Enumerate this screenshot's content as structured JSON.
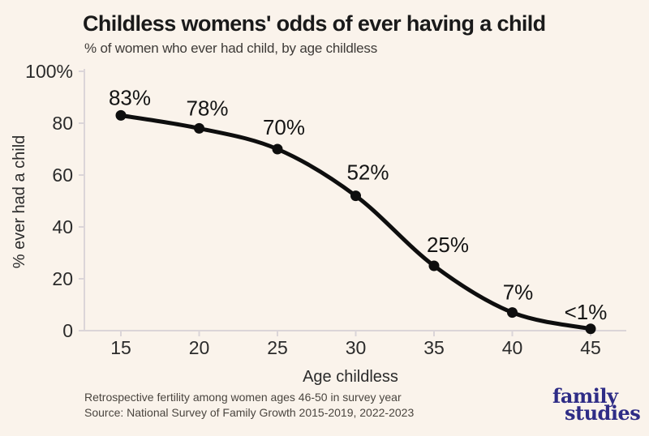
{
  "header": {
    "title": "Childless womens' odds of ever having a child",
    "subtitle": "% of women who ever had child, by age childless"
  },
  "chart_data": {
    "type": "line",
    "x": [
      15,
      20,
      25,
      30,
      35,
      40,
      45
    ],
    "values": [
      83,
      78,
      70,
      52,
      25,
      7,
      0.7
    ],
    "point_labels": [
      "83%",
      "78%",
      "70%",
      "52%",
      "25%",
      "7%",
      "<1%"
    ],
    "xlabel": "Age childless",
    "ylabel": "% ever had a child",
    "x_tick_labels": [
      "15",
      "20",
      "25",
      "30",
      "35",
      "40",
      "45"
    ],
    "y_ticks": [
      0,
      20,
      40,
      60,
      80,
      100
    ],
    "y_tick_labels": [
      "0",
      "20",
      "40",
      "60",
      "80",
      "100%"
    ],
    "xlim": [
      15,
      45
    ],
    "ylim": [
      0,
      100
    ],
    "grid": false,
    "legend": "none",
    "line_color": "#0e0e0e",
    "point_color": "#0e0e0e"
  },
  "footer": {
    "note": "Retrospective fertility among women ages 46-50 in survey year",
    "source": "Source: National Survey of Family Growth 2015-2019, 2022-2023"
  },
  "logo": {
    "line1": "family",
    "line2": "studies",
    "color": "#2e2c86"
  },
  "colors": {
    "background": "#faf3eb",
    "axis": "#dbd5d8",
    "tick_text": "#2b2b2b",
    "label_text": "#141414",
    "title_text": "#1a1a1a"
  }
}
